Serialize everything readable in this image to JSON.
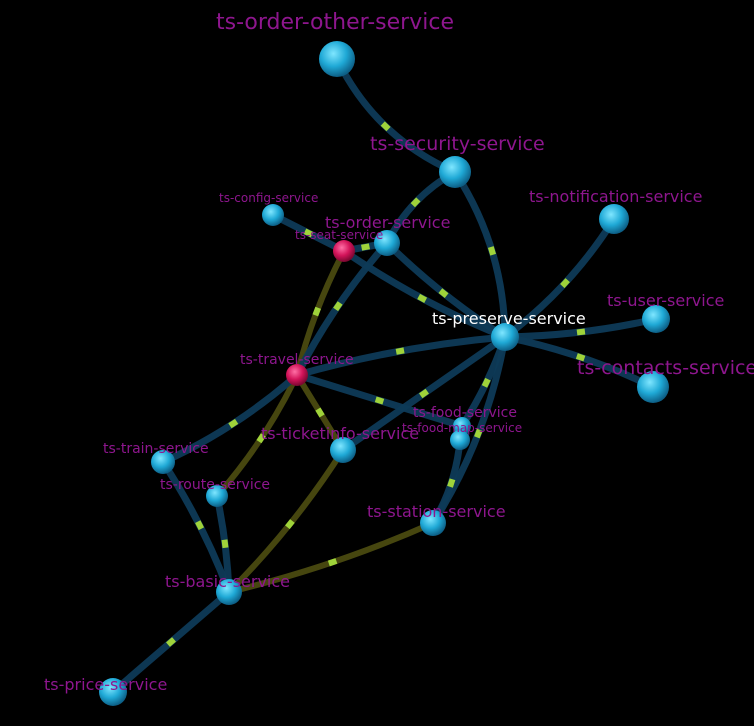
{
  "graph": {
    "focus": "ts-preserve-service",
    "colors": {
      "background": "#000000",
      "edge": "#0e3a57",
      "edge_highlight": "#4a4a10",
      "edge_particle": "#9fd33a",
      "node": "#1fa9d6",
      "node_highlight": "#d3145a",
      "label": "#8e168e",
      "label_focus": "#ffffff"
    },
    "nodes": [
      {
        "id": "order-other",
        "label": "ts-order-other-service"
      },
      {
        "id": "security",
        "label": "ts-security-service"
      },
      {
        "id": "notification",
        "label": "ts-notification-service"
      },
      {
        "id": "config",
        "label": "ts-config-service"
      },
      {
        "id": "order",
        "label": "ts-order-service"
      },
      {
        "id": "seat",
        "label": "ts-seat-service"
      },
      {
        "id": "user",
        "label": "ts-user-service"
      },
      {
        "id": "preserve",
        "label": "ts-preserve-service"
      },
      {
        "id": "contacts",
        "label": "ts-contacts-service"
      },
      {
        "id": "travel",
        "label": "ts-travel-service"
      },
      {
        "id": "food",
        "label": "ts-food-service"
      },
      {
        "id": "food-map",
        "label": "ts-food-map-service"
      },
      {
        "id": "ticketinfo",
        "label": "ts-ticketinfo-service"
      },
      {
        "id": "train",
        "label": "ts-train-service"
      },
      {
        "id": "route",
        "label": "ts-route-service"
      },
      {
        "id": "station",
        "label": "ts-station-service"
      },
      {
        "id": "basic",
        "label": "ts-basic-service"
      },
      {
        "id": "price",
        "label": "ts-price-service"
      }
    ],
    "edges": [
      {
        "from": "order-other",
        "to": "security"
      },
      {
        "from": "security",
        "to": "preserve"
      },
      {
        "from": "security",
        "to": "order"
      },
      {
        "from": "notification",
        "to": "preserve"
      },
      {
        "from": "config",
        "to": "seat"
      },
      {
        "from": "order",
        "to": "preserve"
      },
      {
        "from": "seat",
        "to": "preserve"
      },
      {
        "from": "seat",
        "to": "order"
      },
      {
        "from": "user",
        "to": "preserve"
      },
      {
        "from": "contacts",
        "to": "preserve"
      },
      {
        "from": "travel",
        "to": "preserve"
      },
      {
        "from": "travel",
        "to": "seat",
        "highlight": true
      },
      {
        "from": "travel",
        "to": "order"
      },
      {
        "from": "travel",
        "to": "ticketinfo",
        "highlight": true
      },
      {
        "from": "travel",
        "to": "food"
      },
      {
        "from": "travel",
        "to": "route",
        "highlight": true
      },
      {
        "from": "travel",
        "to": "train"
      },
      {
        "from": "preserve",
        "to": "ticketinfo"
      },
      {
        "from": "preserve",
        "to": "food"
      },
      {
        "from": "preserve",
        "to": "station"
      },
      {
        "from": "food",
        "to": "food-map"
      },
      {
        "from": "food-map",
        "to": "station"
      },
      {
        "from": "ticketinfo",
        "to": "basic",
        "highlight": true
      },
      {
        "from": "train",
        "to": "basic"
      },
      {
        "from": "route",
        "to": "basic"
      },
      {
        "from": "station",
        "to": "basic",
        "highlight": true
      },
      {
        "from": "basic",
        "to": "price"
      }
    ]
  }
}
